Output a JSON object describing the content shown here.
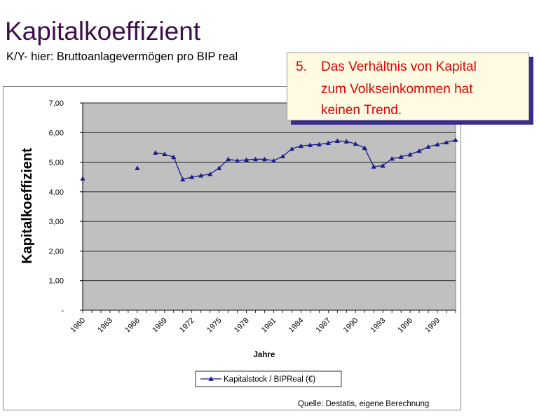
{
  "title": "Kapitalkoeffizient",
  "subtitle": "K/Y- hier: Bruttoanlagevermögen pro BIP real",
  "callout": {
    "number": "5.",
    "lines": [
      "Das Verhältnis von Kapital",
      "zum Volkseinkommen hat",
      "keinen Trend."
    ]
  },
  "source": "Quelle: Destatis, eigene Berechnung",
  "colors": {
    "plot_bg": "#c0c0c0",
    "series": "#1c1c8c",
    "callout_text": "#e00000",
    "callout_shadow": "#3a2b8c"
  },
  "chart_data": {
    "type": "line",
    "ylabel": "Kapitalkoeffizient",
    "xlabel": "Jahre",
    "ylim": [
      0,
      7
    ],
    "yticks": [
      "-",
      "1,00",
      "2,00",
      "3,00",
      "4,00",
      "5,00",
      "6,00",
      "7,00"
    ],
    "xlim": [
      1960,
      2001
    ],
    "xticks": [
      "1960",
      "1963",
      "1966",
      "1969",
      "1972",
      "1975",
      "1978",
      "1981",
      "1984",
      "1987",
      "1990",
      "1993",
      "1996",
      "1999"
    ],
    "grid": true,
    "legend": "bottom-center",
    "series": [
      {
        "name": "Kapitalstock / BIPReal (€)",
        "marker": "triangle",
        "x": [
          1960,
          1966,
          1968,
          1969,
          1970,
          1971,
          1972,
          1973,
          1974,
          1975,
          1976,
          1977,
          1978,
          1979,
          1980,
          1981,
          1982,
          1983,
          1984,
          1985,
          1986,
          1987,
          1988,
          1989,
          1990,
          1991,
          1992,
          1993,
          1994,
          1995,
          1996,
          1997,
          1998,
          1999,
          2000,
          2001
        ],
        "values": [
          4.45,
          4.8,
          5.32,
          5.27,
          5.17,
          4.42,
          4.5,
          4.55,
          4.6,
          4.8,
          5.1,
          5.05,
          5.08,
          5.1,
          5.1,
          5.05,
          5.2,
          5.45,
          5.55,
          5.58,
          5.6,
          5.65,
          5.72,
          5.7,
          5.62,
          5.48,
          4.85,
          4.88,
          5.12,
          5.18,
          5.26,
          5.38,
          5.52,
          5.6,
          5.67,
          5.75
        ]
      }
    ]
  }
}
